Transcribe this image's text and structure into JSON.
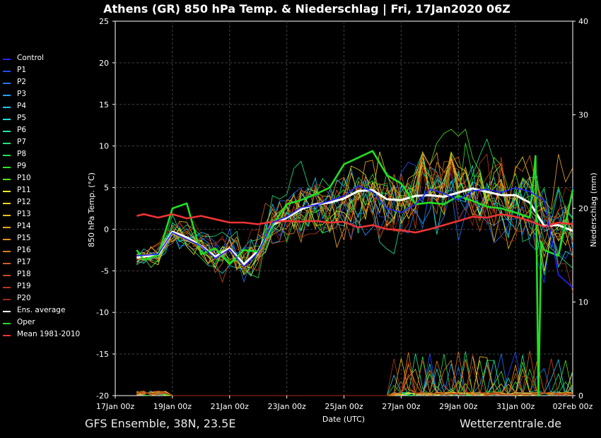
{
  "header": {
    "title": "Athens  (GR)  850 hPa Temp. & Niederschlag | Fri, 17Jan2020 06Z"
  },
  "footer": {
    "model_info": "GFS Ensemble, 38N, 23.5E",
    "source": "Wetterzentrale.de"
  },
  "legend": {
    "items": [
      {
        "label": "Control",
        "color": "#2424ff"
      },
      {
        "label": "P1",
        "color": "#1f4cff"
      },
      {
        "label": "P2",
        "color": "#1f78ff"
      },
      {
        "label": "P3",
        "color": "#1fa0ff"
      },
      {
        "label": "P4",
        "color": "#1fc8ff"
      },
      {
        "label": "P5",
        "color": "#1fe0e0"
      },
      {
        "label": "P6",
        "color": "#1fe8a8"
      },
      {
        "label": "P7",
        "color": "#1fe880"
      },
      {
        "label": "P8",
        "color": "#1fe050"
      },
      {
        "label": "P9",
        "color": "#28e828"
      },
      {
        "label": "P10",
        "color": "#50e81f"
      },
      {
        "label": "P11",
        "color": "#f0f01f"
      },
      {
        "label": "P12",
        "color": "#f0d81f"
      },
      {
        "label": "P13",
        "color": "#f0c01f"
      },
      {
        "label": "P14",
        "color": "#f0a81f"
      },
      {
        "label": "P15",
        "color": "#f09018"
      },
      {
        "label": "P16",
        "color": "#e07818"
      },
      {
        "label": "P17",
        "color": "#d06018"
      },
      {
        "label": "P18",
        "color": "#c84818"
      },
      {
        "label": "P19",
        "color": "#b83818"
      },
      {
        "label": "P20",
        "color": "#a02818"
      },
      {
        "label": "Ens. average",
        "color": "#ffffff"
      },
      {
        "label": "Oper",
        "color": "#22dd22"
      },
      {
        "label": "Mean 1981-2010",
        "color": "#ee3333"
      }
    ]
  },
  "chart_data": {
    "type": "line",
    "title": "Athens  (GR)  850 hPa Temp. & Niederschlag | Fri, 17Jan2020 06Z",
    "xlabel": "Date (UTC)",
    "ylabel": "850 hPa Temp. (°C)",
    "y2label": "Niederschlag (mm)",
    "x_ticks": [
      "17Jan 00z",
      "19Jan 00z",
      "21Jan 00z",
      "23Jan 00z",
      "25Jan 00z",
      "27Jan 00z",
      "29Jan 00z",
      "31Jan 00z",
      "02Feb 00z"
    ],
    "x_range_days": [
      0,
      16
    ],
    "ylim": [
      -20,
      25
    ],
    "yticks": [
      "-20",
      "-15",
      "-10",
      "-5",
      "0",
      "5",
      "10",
      "15",
      "20",
      "25"
    ],
    "y2lim": [
      0,
      40
    ],
    "y2ticks": [
      "0",
      "10",
      "20",
      "30",
      "40"
    ],
    "grid": true,
    "legend_position": "left",
    "series": [
      {
        "name": "Ens. average",
        "color": "#ffffff",
        "x": [
          0.75,
          1,
          1.5,
          2,
          2.5,
          3,
          3.5,
          4,
          4.5,
          5,
          5.5,
          6,
          6.5,
          7,
          7.5,
          8,
          8.5,
          9,
          9.5,
          10,
          10.5,
          11,
          11.5,
          12,
          12.5,
          13,
          13.5,
          14,
          14.5,
          15,
          15.5,
          16
        ],
        "y": [
          -3.4,
          -3.3,
          -3.1,
          -0.3,
          -1,
          -2,
          -3.3,
          -2.3,
          -4.2,
          -2.6,
          0.5,
          1.4,
          2.4,
          3,
          3.2,
          3.7,
          4.6,
          4.7,
          3.6,
          3.5,
          4,
          4.1,
          3.9,
          4.4,
          4.9,
          4.5,
          4.1,
          4.1,
          3.2,
          0.4,
          0.5,
          -0.2
        ]
      },
      {
        "name": "Oper",
        "color": "#22dd22",
        "x": [
          0.75,
          1,
          1.5,
          2,
          2.5,
          2.8,
          3,
          3.5,
          4,
          4.5,
          5,
          5.5,
          6,
          6.5,
          7,
          7.5,
          8,
          8.5,
          9,
          9.5,
          10,
          10.5,
          11,
          11.5,
          12,
          12.5,
          13,
          13.5,
          14,
          14.5,
          14.7,
          14.8,
          14.9,
          15,
          15.5,
          16
        ],
        "y": [
          -2.5,
          -3.7,
          -3.1,
          2.5,
          3.1,
          -0.5,
          -3,
          -2.3,
          -4.2,
          -2.5,
          -2.7,
          0.5,
          3,
          3.5,
          4.2,
          5,
          7.8,
          8.6,
          9.4,
          6.5,
          5.5,
          3,
          3.2,
          3,
          4,
          3.4,
          2.7,
          2.5,
          2,
          1.4,
          8.8,
          -20,
          -1.5,
          -2.5,
          -3.2,
          4.7
        ]
      },
      {
        "name": "Mean 1981-2010",
        "color": "#ee3333",
        "x": [
          0.75,
          1,
          1.5,
          2,
          2.5,
          3,
          3.5,
          4,
          4.5,
          5,
          5.5,
          6,
          6.5,
          7,
          7.5,
          8,
          8.5,
          9,
          9.5,
          10,
          10.5,
          11,
          11.5,
          12,
          12.5,
          13,
          13.5,
          14,
          14.5,
          15,
          15.5,
          16
        ],
        "y": [
          1.6,
          1.8,
          1.4,
          1.8,
          1.3,
          1.6,
          1.2,
          0.8,
          0.8,
          0.6,
          0.9,
          1,
          0.9,
          1,
          0.8,
          0.9,
          0.2,
          0.5,
          0,
          -0.1,
          -0.4,
          0,
          0.5,
          1,
          1.5,
          1.4,
          1.8,
          1.5,
          1,
          0.3,
          0.8,
          0.6
        ]
      },
      {
        "name": "Control",
        "color": "#2424ff",
        "x": [
          0.75,
          1.5,
          2,
          2.5,
          3,
          3.5,
          4,
          4.5,
          5,
          5.5,
          6,
          6.5,
          7,
          7.5,
          8,
          8.5,
          9,
          9.5,
          10,
          10.5,
          11,
          11.5,
          12,
          12.5,
          13,
          13.5,
          14,
          14.5,
          15,
          15.5,
          16
        ],
        "y": [
          -3.2,
          -3,
          -0.4,
          -1.2,
          -2,
          -3.5,
          -2.4,
          -4.5,
          -2.8,
          0.8,
          1.5,
          2.6,
          2.9,
          3.4,
          4,
          5.2,
          4.5,
          2.5,
          2,
          3,
          4.8,
          4.3,
          3.5,
          4.6,
          4.8,
          4.4,
          5,
          4.5,
          3.5,
          -5.5,
          -7
        ]
      }
    ],
    "ensemble_members_shown": 20
  }
}
